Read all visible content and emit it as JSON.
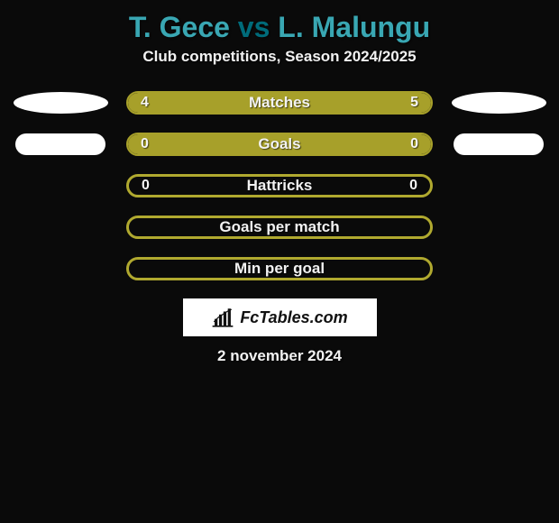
{
  "title": {
    "player1": "T. Gece",
    "vs": "vs",
    "player2": "L. Malungu",
    "color_player": "#39a7b3",
    "color_vs": "#006b7a"
  },
  "subtitle": "Club competitions, Season 2024/2025",
  "colors": {
    "olive": "#a7a02a",
    "olive_thin": "#b0a92f",
    "background": "#0a0a0a",
    "text": "#f2f2f2"
  },
  "shapes": {
    "row0_left": "ellipse",
    "row0_right": "ellipse",
    "row1_left": "lozenge",
    "row1_right": "lozenge"
  },
  "rows": [
    {
      "category": "Matches",
      "left_value": "4",
      "right_value": "5",
      "has_shapes": true,
      "shape": "ellipse",
      "border_width": 2,
      "fill_left_pct": 44,
      "fill_left_color": "#a7a02a",
      "fill_right_pct": 56,
      "fill_right_color": "#a7a02a",
      "outline_color": "#a7a02a"
    },
    {
      "category": "Goals",
      "left_value": "0",
      "right_value": "0",
      "has_shapes": true,
      "shape": "lozenge",
      "border_width": 2,
      "fill_left_pct": 50,
      "fill_left_color": "#a7a02a",
      "fill_right_pct": 50,
      "fill_right_color": "#a7a02a",
      "outline_color": "#a7a02a"
    },
    {
      "category": "Hattricks",
      "left_value": "0",
      "right_value": "0",
      "has_shapes": false,
      "border_width": 3,
      "fill_left_pct": 0,
      "fill_left_color": "#a7a02a",
      "fill_right_pct": 0,
      "fill_right_color": "#a7a02a",
      "outline_color": "#b0a92f"
    },
    {
      "category": "Goals per match",
      "left_value": "",
      "right_value": "",
      "has_shapes": false,
      "border_width": 3,
      "fill_left_pct": 0,
      "fill_left_color": "#a7a02a",
      "fill_right_pct": 0,
      "fill_right_color": "#a7a02a",
      "outline_color": "#b0a92f"
    },
    {
      "category": "Min per goal",
      "left_value": "",
      "right_value": "",
      "has_shapes": false,
      "border_width": 3,
      "fill_left_pct": 0,
      "fill_left_color": "#a7a02a",
      "fill_right_pct": 0,
      "fill_right_color": "#a7a02a",
      "outline_color": "#b0a92f"
    }
  ],
  "footer": {
    "brand": "FcTables.com",
    "date": "2 november 2024"
  }
}
